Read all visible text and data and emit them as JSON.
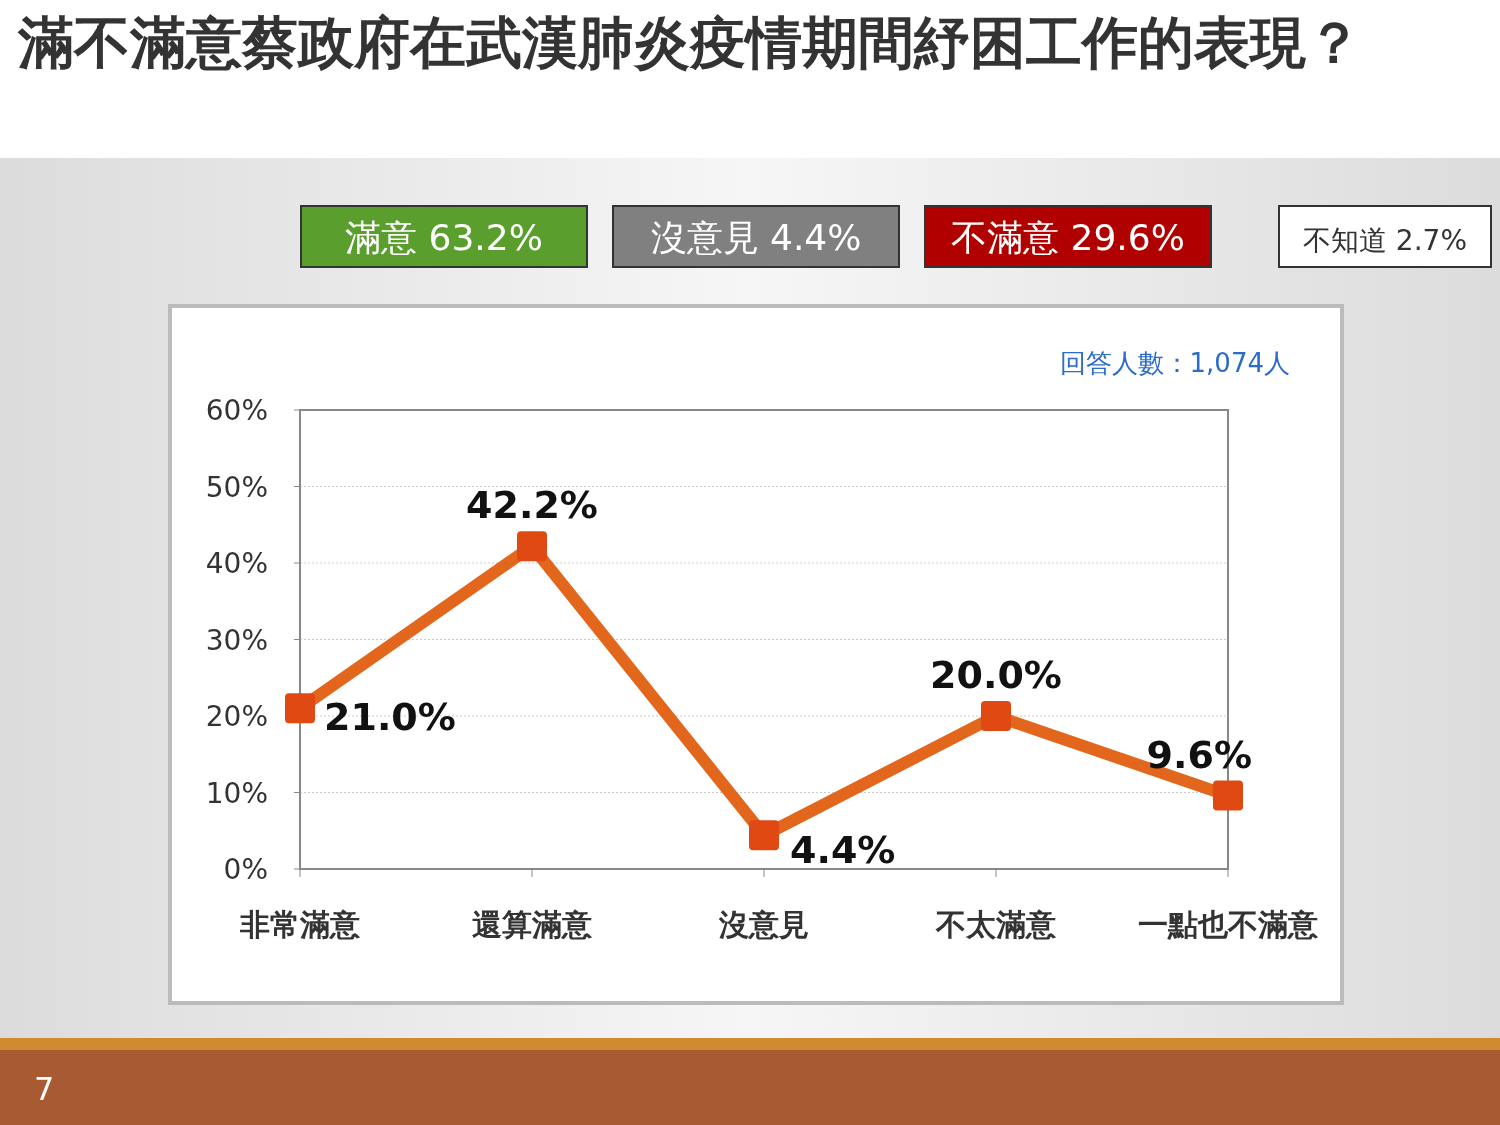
{
  "chart_data": {
    "type": "line",
    "title": "滿不滿意蔡政府在武漢肺炎疫情期間紓困工作的表現？",
    "categories": [
      "非常滿意",
      "還算滿意",
      "沒意見",
      "不太滿意",
      "一點也不滿意"
    ],
    "series": [
      {
        "color": "#e2661b",
        "values": [
          21.0,
          42.2,
          4.4,
          20.0,
          9.6
        ],
        "value_labels": [
          "21.0%",
          "42.2%",
          "4.4%",
          "20.0%",
          "9.6%"
        ]
      }
    ],
    "ylim": [
      0,
      60
    ],
    "yticks": [
      {
        "value": 0,
        "label": "0%"
      },
      {
        "value": 10,
        "label": "10%"
      },
      {
        "value": 20,
        "label": "20%"
      },
      {
        "value": 30,
        "label": "30%"
      },
      {
        "value": 40,
        "label": "40%"
      },
      {
        "value": 50,
        "label": "50%"
      },
      {
        "value": 60,
        "label": "60%"
      }
    ],
    "grid": "y",
    "marker": "square",
    "annotations": [
      "滿意 63.2%",
      "沒意見 4.4%",
      "不滿意 29.6%",
      "不知道 2.7%",
      "回答人數：1,074人",
      "7"
    ]
  }
}
